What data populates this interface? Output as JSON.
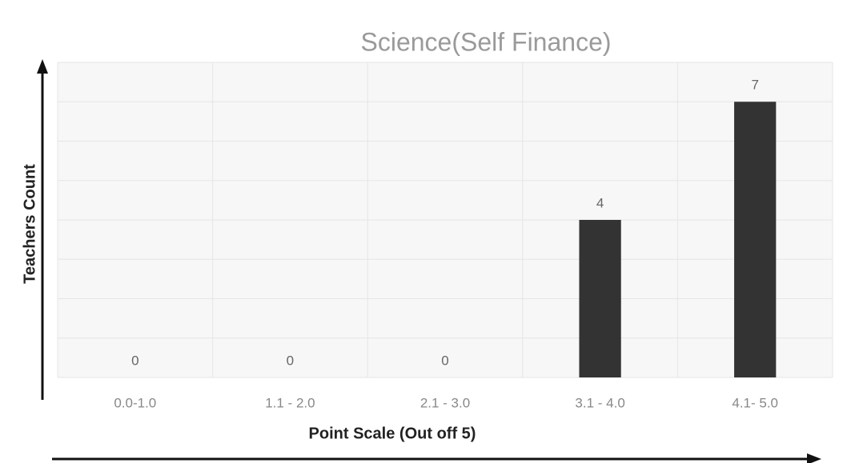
{
  "chart_data": {
    "type": "bar",
    "title": "Science(Self Finance)",
    "x_label": "Point Scale (Out off 5)",
    "y_label": "Teachers Count",
    "categories": [
      "0.0-1.0",
      "1.1 - 2.0",
      "2.1 - 3.0",
      "3.1 - 4.0",
      "4.1- 5.0"
    ],
    "values": [
      0,
      0,
      0,
      4,
      7
    ],
    "color": "#333333",
    "ylim": [
      0,
      8
    ],
    "yticks": [
      0,
      1,
      2,
      3,
      4,
      5,
      6,
      7,
      8
    ],
    "grid": true
  }
}
